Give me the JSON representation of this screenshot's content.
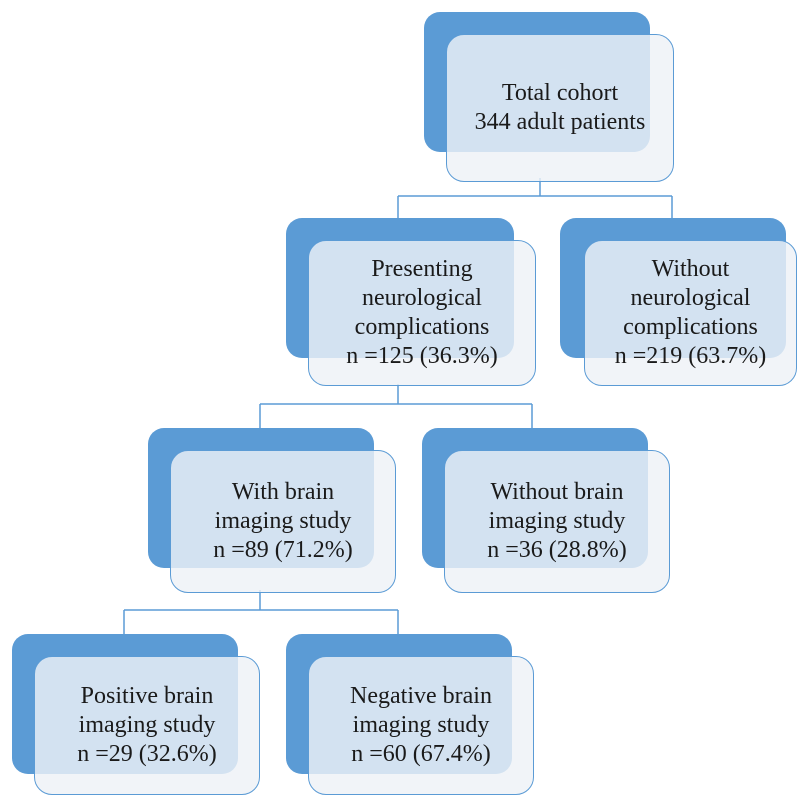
{
  "nodes": {
    "total": {
      "lines": [
        "Total cohort",
        "344 adult patients"
      ]
    },
    "neuro": {
      "lines": [
        "Presenting",
        "neurological",
        "complications",
        "n =125 (36.3%)"
      ]
    },
    "no_neuro": {
      "lines": [
        "Without",
        "neurological",
        "complications",
        "n =219 (63.7%)"
      ]
    },
    "imaging": {
      "lines": [
        "With brain",
        "imaging study",
        "n =89 (71.2%)"
      ]
    },
    "no_imaging": {
      "lines": [
        "Without brain",
        "imaging study",
        "n =36 (28.8%)"
      ]
    },
    "positive": {
      "lines": [
        "Positive brain",
        "imaging study",
        "n =29 (32.6%)"
      ]
    },
    "negative": {
      "lines": [
        "Negative brain",
        "imaging study",
        "n =60 (67.4%)"
      ]
    }
  },
  "colors": {
    "accent": "#5b9bd5",
    "card_fill": "#eef2f6",
    "connector": "#5b9bd5",
    "text": "#1a1a1a"
  }
}
